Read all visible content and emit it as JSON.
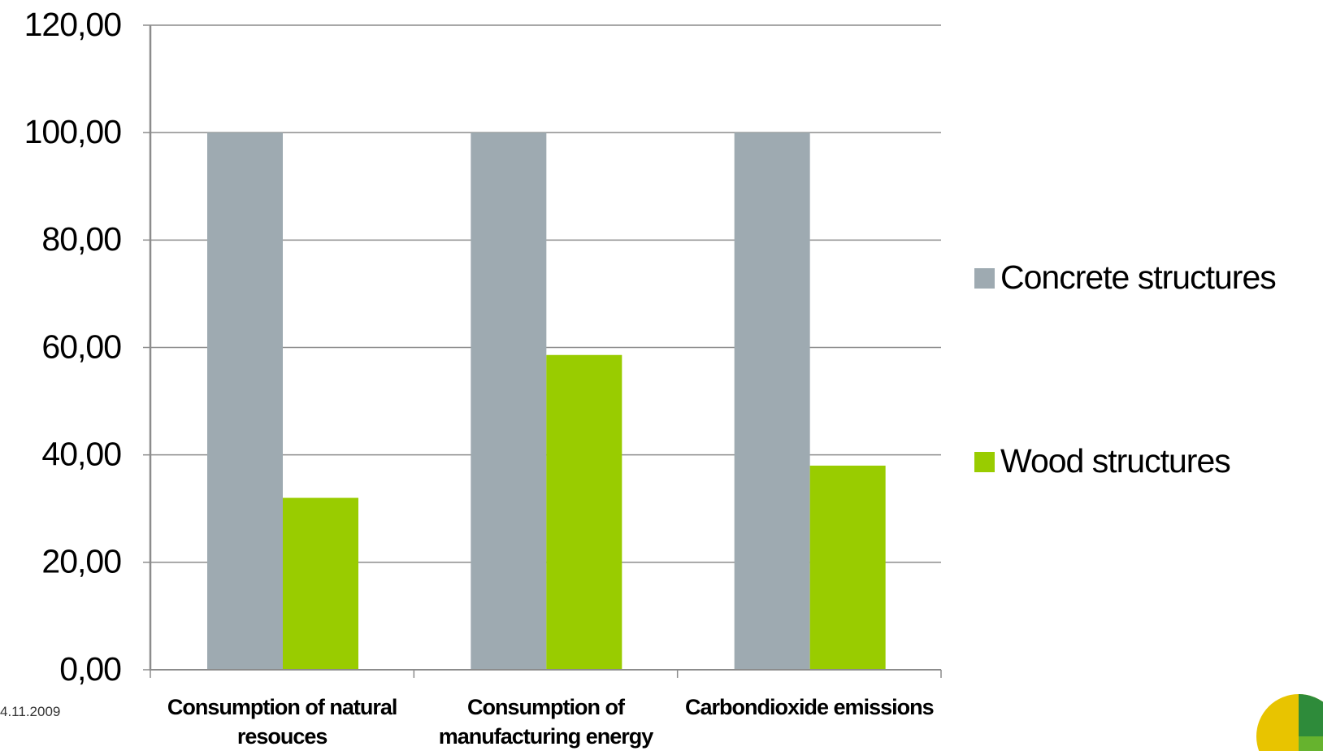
{
  "chart_data": {
    "type": "bar",
    "categories": [
      "Consumption of natural resouces",
      "Consumption of manufacturing energy",
      "Carbondioxide emissions"
    ],
    "series": [
      {
        "name": "Concrete structures",
        "color": "#9eaab1",
        "values": [
          100,
          100,
          100
        ]
      },
      {
        "name": "Wood structures",
        "color": "#99cc00",
        "values": [
          32.0,
          58.6,
          38.0
        ]
      }
    ],
    "ylim": [
      0,
      120
    ],
    "yticks": [
      {
        "value": 0,
        "label": "0,00"
      },
      {
        "value": 20,
        "label": "20,00"
      },
      {
        "value": 40,
        "label": "40,00"
      },
      {
        "value": 60,
        "label": "60,00"
      },
      {
        "value": 80,
        "label": "80,00"
      },
      {
        "value": 100,
        "label": "100,00"
      },
      {
        "value": 120,
        "label": "120,00"
      }
    ],
    "grid": true,
    "legend": "right"
  },
  "footer": {
    "date": "4.11.2009"
  }
}
